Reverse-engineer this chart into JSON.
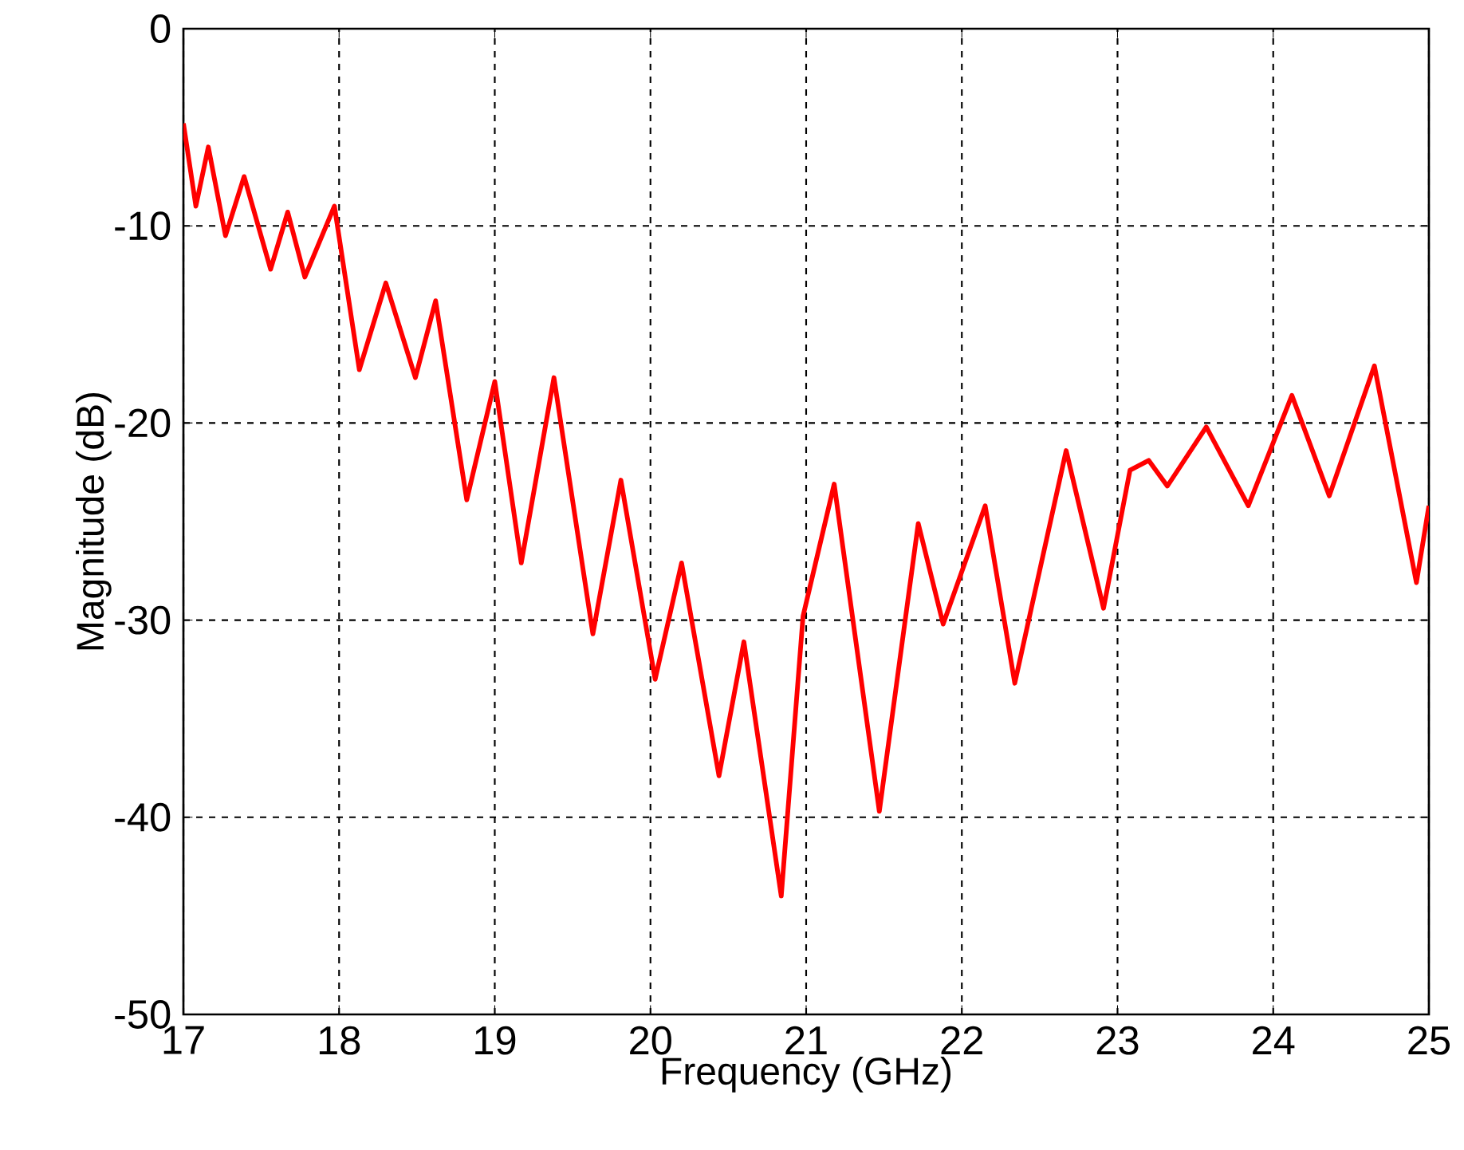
{
  "chart_data": {
    "type": "line",
    "xlabel": "Frequency (GHz)",
    "ylabel": "Magnitude (dB)",
    "xlim": [
      17,
      25
    ],
    "ylim": [
      -50,
      0
    ],
    "xticks": [
      17,
      18,
      19,
      20,
      21,
      22,
      23,
      24,
      25
    ],
    "yticks": [
      -50,
      -40,
      -30,
      -20,
      -10,
      0
    ],
    "grid": true,
    "marker": "none",
    "line_style": "solid",
    "series": [
      {
        "color": "#ff0000",
        "x": [
          17.0,
          17.08,
          17.16,
          17.27,
          17.39,
          17.56,
          17.67,
          17.78,
          17.97,
          18.13,
          18.3,
          18.49,
          18.62,
          18.82,
          19.0,
          19.17,
          19.38,
          19.63,
          19.81,
          20.03,
          20.2,
          20.44,
          20.6,
          20.84,
          20.98,
          21.18,
          21.47,
          21.72,
          21.88,
          22.15,
          22.34,
          22.67,
          22.91,
          23.08,
          23.2,
          23.32,
          23.57,
          23.84,
          24.12,
          24.36,
          24.65,
          24.92,
          25.0
        ],
        "values": [
          -4.8,
          -9.0,
          -6.0,
          -10.5,
          -7.5,
          -12.2,
          -9.3,
          -12.6,
          -9.0,
          -17.3,
          -12.9,
          -17.7,
          -13.8,
          -23.9,
          -17.9,
          -27.1,
          -17.7,
          -30.7,
          -22.9,
          -33.0,
          -27.1,
          -37.9,
          -31.1,
          -44.0,
          -29.8,
          -23.1,
          -39.7,
          -25.1,
          -30.2,
          -24.2,
          -33.2,
          -21.4,
          -29.4,
          -22.4,
          -21.9,
          -23.2,
          -20.2,
          -24.2,
          -18.6,
          -23.7,
          -17.1,
          -28.1,
          -24.2
        ]
      }
    ]
  }
}
